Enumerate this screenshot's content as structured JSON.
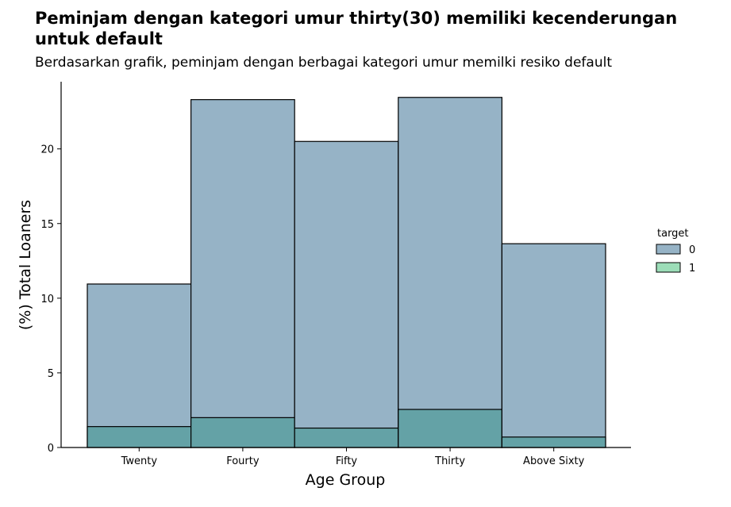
{
  "chart_data": {
    "type": "bar",
    "title": "Peminjam dengan kategori umur thirty(30) memiliki kecenderungan untuk default",
    "subtitle": "Berdasarkan grafik, peminjam dengan berbagai kategori umur memilki resiko default",
    "xlabel": "Age Group",
    "ylabel": "(%) Total Loaners",
    "categories": [
      "Twenty",
      "Fourty",
      "Fifty",
      "Thirty",
      "Above Sixty"
    ],
    "ylim": [
      0,
      24.5
    ],
    "yticks": [
      0,
      5,
      10,
      15,
      20
    ],
    "series": [
      {
        "name": "0",
        "values": [
          10.95,
          23.3,
          20.5,
          23.45,
          13.65
        ],
        "color": "#96B3C6"
      },
      {
        "name": "1",
        "values": [
          1.4,
          2.0,
          1.3,
          2.55,
          0.7
        ],
        "color": "#9CDDB8"
      }
    ],
    "overlap_color": "#64A2A6",
    "legend": {
      "title": "target",
      "position": "right"
    },
    "grid": false
  }
}
